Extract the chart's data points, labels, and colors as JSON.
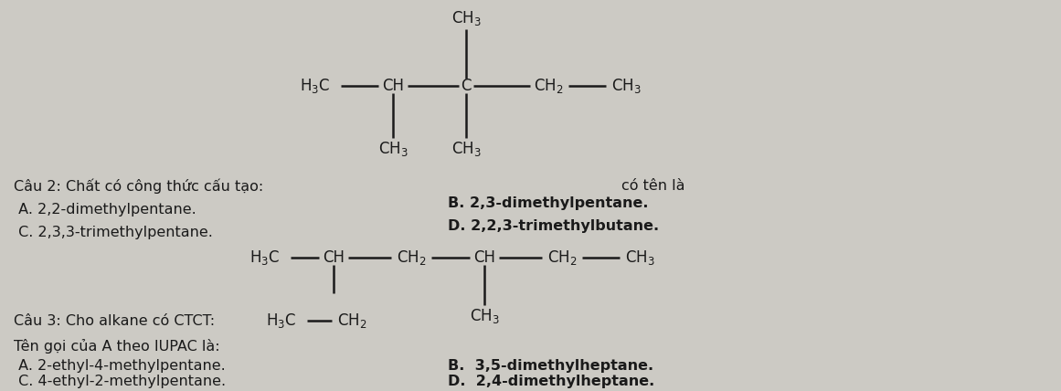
{
  "bg_color": "#cccac4",
  "text_color": "#1a1a1a",
  "q2_title": "Câu 2: Chất có công thức cấu tạo:",
  "q2_A": " A. 2,2-dimethylpentane.",
  "q2_C": " C. 2,3,3-trimethylpentane.",
  "q2_cotla": "có tên là",
  "q2_B": "B. 2,3-dimethylpentane.",
  "q2_D": "D. 2,2,3-trimethylbutane.",
  "q3_intro": "Câu 3: Cho alkane có CTCT:",
  "q3_sub": "Tên gọi của A theo IUPAC là:",
  "q3_A": " A. 2-ethyl-4-methylpentane.",
  "q3_B": "B.  3,5-dimethylheptane.",
  "q3_C": " C. 4-ethyl-2-methylpentane.",
  "q3_D": "D.  2,4-dimethylheptane."
}
